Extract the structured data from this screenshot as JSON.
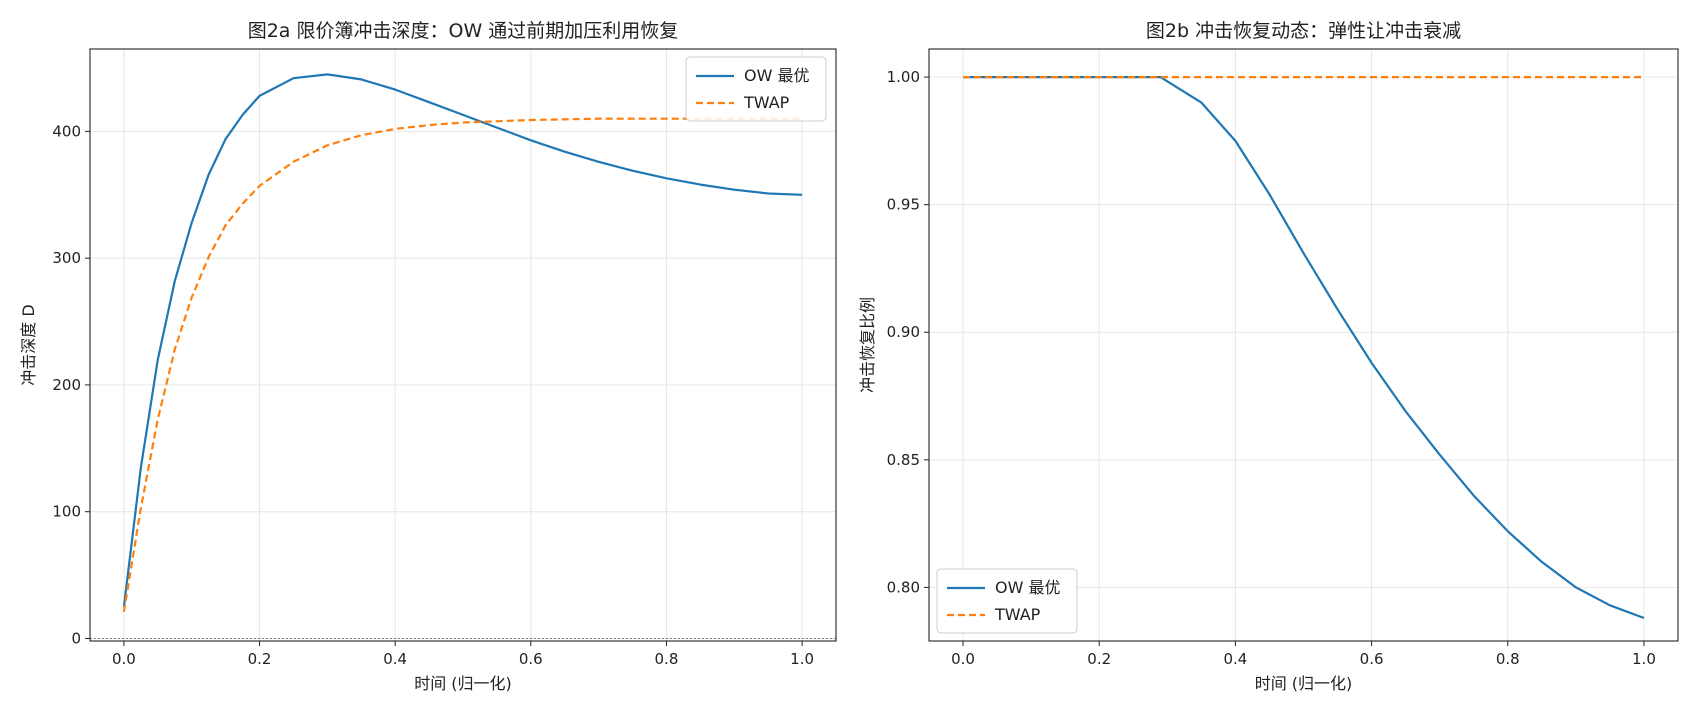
{
  "chart_data": [
    {
      "type": "line",
      "title": "图2a  限价簿冲击深度：OW 通过前期加压利用恢复",
      "xlabel": "时间 (归一化)",
      "ylabel": "冲击深度 D",
      "xlim": [
        -0.05,
        1.05
      ],
      "ylim": [
        -2,
        465
      ],
      "xticks": [
        0.0,
        0.2,
        0.4,
        0.6,
        0.8,
        1.0
      ],
      "xtick_labels": [
        "0.0",
        "0.2",
        "0.4",
        "0.6",
        "0.8",
        "1.0"
      ],
      "yticks": [
        0,
        100,
        200,
        300,
        400
      ],
      "ytick_labels": [
        "0",
        "100",
        "200",
        "300",
        "400"
      ],
      "grid": true,
      "legend_position": "top-right",
      "baseline": 0,
      "series": [
        {
          "name": "OW 最优",
          "color": "#1f77b4",
          "dash": "solid",
          "x": [
            0.0,
            0.025,
            0.05,
            0.075,
            0.1,
            0.125,
            0.15,
            0.175,
            0.2,
            0.25,
            0.3,
            0.35,
            0.4,
            0.45,
            0.5,
            0.55,
            0.6,
            0.65,
            0.7,
            0.75,
            0.8,
            0.85,
            0.9,
            0.95,
            1.0
          ],
          "y": [
            25,
            135,
            220,
            282,
            328,
            366,
            394,
            413,
            428,
            442,
            445,
            441,
            433,
            423,
            413,
            403,
            393,
            384,
            376,
            369,
            363,
            358,
            354,
            351,
            350
          ]
        },
        {
          "name": "TWAP",
          "color": "#ff7f0e",
          "dash": "dashed",
          "x": [
            0.0,
            0.025,
            0.05,
            0.075,
            0.1,
            0.125,
            0.15,
            0.175,
            0.2,
            0.25,
            0.3,
            0.35,
            0.4,
            0.45,
            0.5,
            0.55,
            0.6,
            0.7,
            0.8,
            0.9,
            1.0
          ],
          "y": [
            21,
            103,
            173,
            228,
            269,
            301,
            326,
            343,
            357,
            376,
            389,
            397,
            402,
            405,
            407,
            408,
            409,
            410,
            410,
            410,
            410
          ]
        }
      ]
    },
    {
      "type": "line",
      "title": "图2b  冲击恢复动态：弹性让冲击衰减",
      "xlabel": "时间 (归一化)",
      "ylabel": "冲击恢复比例",
      "xlim": [
        -0.05,
        1.05
      ],
      "ylim": [
        0.779,
        1.011
      ],
      "xticks": [
        0.0,
        0.2,
        0.4,
        0.6,
        0.8,
        1.0
      ],
      "xtick_labels": [
        "0.0",
        "0.2",
        "0.4",
        "0.6",
        "0.8",
        "1.0"
      ],
      "yticks": [
        0.8,
        0.85,
        0.9,
        0.95,
        1.0
      ],
      "ytick_labels": [
        "0.80",
        "0.85",
        "0.90",
        "0.95",
        "1.00"
      ],
      "grid": true,
      "legend_position": "bottom-left",
      "series": [
        {
          "name": "OW 最优",
          "color": "#1f77b4",
          "dash": "solid",
          "x": [
            0.0,
            0.1,
            0.2,
            0.29,
            0.32,
            0.35,
            0.4,
            0.45,
            0.5,
            0.55,
            0.6,
            0.65,
            0.7,
            0.75,
            0.8,
            0.85,
            0.9,
            0.95,
            1.0
          ],
          "y": [
            1.0,
            1.0,
            1.0,
            1.0,
            0.995,
            0.99,
            0.975,
            0.954,
            0.931,
            0.909,
            0.888,
            0.869,
            0.852,
            0.836,
            0.822,
            0.81,
            0.8,
            0.793,
            0.788
          ]
        },
        {
          "name": "TWAP",
          "color": "#ff7f0e",
          "dash": "dashed",
          "x": [
            0.0,
            1.0
          ],
          "y": [
            1.0,
            1.0
          ]
        }
      ]
    }
  ]
}
